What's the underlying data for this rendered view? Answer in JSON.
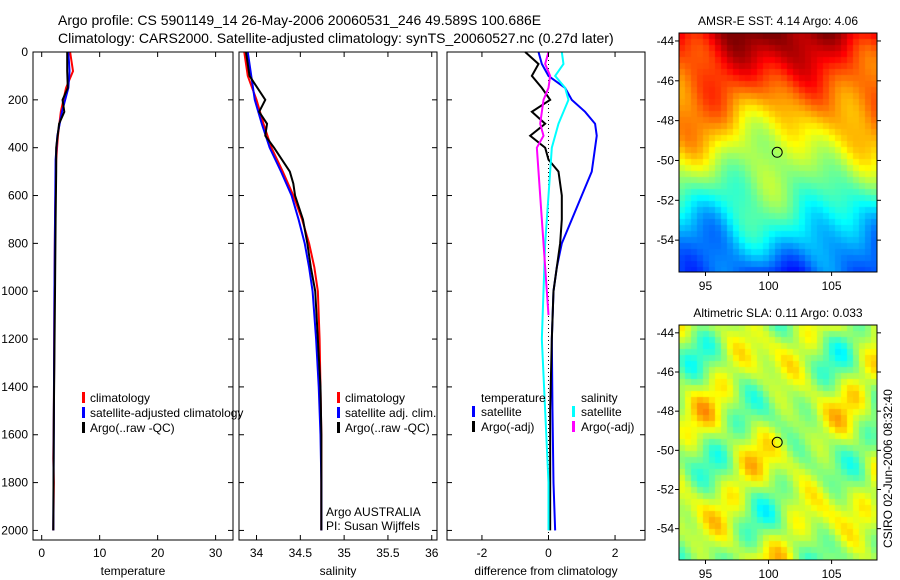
{
  "header": {
    "line1": "Argo profile: CS 5901149_14 26-May-2006 20060531_246 49.589S 100.686E",
    "line2": "Climatology: CARS2000. Satellite-adjusted climatology: synTS_20060527.nc (0.27d later)"
  },
  "chart_data": [
    {
      "type": "line",
      "id": "temperature",
      "xlabel": "temperature",
      "xlim": [
        -1.5,
        33
      ],
      "ylim": [
        2040,
        0
      ],
      "xticks": [
        0,
        10,
        20,
        30
      ],
      "yticks": [
        0,
        200,
        400,
        600,
        800,
        1000,
        1200,
        1400,
        1600,
        1800,
        2000
      ],
      "legend": [
        "climatology",
        "satellite-adjusted climatology",
        "Argo(..raw -QC)"
      ],
      "series": [
        {
          "name": "climatology",
          "color": "#ff0000",
          "depth": [
            0,
            80,
            150,
            250,
            350,
            450,
            700,
            1000,
            1500,
            1700,
            1800,
            2000
          ],
          "values": [
            4.9,
            5.4,
            4.2,
            3.3,
            2.8,
            2.5,
            2.3,
            2.2,
            2.1,
            2.0,
            2.1,
            2.0
          ]
        },
        {
          "name": "satellite-adjusted climatology",
          "color": "#0000ff",
          "depth": [
            0,
            80,
            150,
            250,
            350,
            450,
            700,
            1000,
            1500,
            2000
          ],
          "values": [
            4.6,
            4.8,
            4.6,
            3.5,
            2.7,
            2.4,
            2.3,
            2.2,
            2.1,
            2.0
          ]
        },
        {
          "name": "Argo(..raw -QC)",
          "color": "#000000",
          "depth": [
            0,
            80,
            150,
            200,
            250,
            300,
            400,
            500,
            700,
            1000,
            1500,
            2000
          ],
          "values": [
            4.4,
            4.4,
            4.5,
            3.6,
            3.9,
            3.0,
            2.5,
            2.5,
            2.4,
            2.3,
            2.1,
            2.0
          ]
        }
      ]
    },
    {
      "type": "line",
      "id": "salinity",
      "xlabel": "salinity",
      "xlim": [
        33.8,
        36.06
      ],
      "ylim": [
        2040,
        0
      ],
      "xticks": [
        34,
        34.5,
        35,
        35.5,
        36
      ],
      "legend": [
        "climatology",
        "satellite adj. clim.",
        "Argo(..raw -QC)"
      ],
      "annotation": [
        "Argo AUSTRALIA",
        "PI: Susan Wijffels"
      ],
      "series": [
        {
          "name": "climatology",
          "color": "#ff0000",
          "depth": [
            0,
            100,
            200,
            300,
            400,
            500,
            600,
            700,
            800,
            900,
            1000,
            1200,
            1400,
            1600,
            1800,
            2000
          ],
          "values": [
            33.86,
            33.9,
            34.0,
            34.08,
            34.17,
            34.3,
            34.42,
            34.52,
            34.6,
            34.66,
            34.7,
            34.72,
            34.73,
            34.74,
            34.74,
            34.74
          ]
        },
        {
          "name": "satellite adj. clim.",
          "color": "#0000ff",
          "depth": [
            0,
            100,
            200,
            300,
            400,
            500,
            600,
            700,
            800,
            900,
            1000,
            1200,
            1400,
            1600,
            1800,
            2000
          ],
          "values": [
            33.9,
            33.94,
            33.98,
            34.06,
            34.15,
            34.28,
            34.4,
            34.48,
            34.55,
            34.6,
            34.64,
            34.68,
            34.71,
            34.73,
            34.74,
            34.74
          ]
        },
        {
          "name": "Argo(..raw -QC)",
          "color": "#000000",
          "depth": [
            0,
            100,
            200,
            250,
            300,
            350,
            400,
            500,
            550,
            600,
            700,
            800,
            900,
            1000,
            1200,
            1400,
            1600,
            1800,
            2000
          ],
          "values": [
            33.88,
            33.92,
            34.1,
            34.03,
            34.12,
            34.1,
            34.2,
            34.38,
            34.42,
            34.44,
            34.53,
            34.58,
            34.62,
            34.67,
            34.7,
            34.73,
            34.74,
            34.74,
            34.74
          ]
        }
      ]
    },
    {
      "type": "line",
      "id": "difference",
      "xlabel": "difference from climatology",
      "xlim": [
        -3.05,
        2.9
      ],
      "ylim": [
        2040,
        0
      ],
      "xticks": [
        -2,
        0,
        2
      ],
      "legend": {
        "temperature_title": "temperature",
        "salinity_title": "salinity",
        "temp_items": [
          "satellite",
          "Argo(-adj)"
        ],
        "sal_items": [
          "satellite",
          "Argo(-adj)"
        ]
      },
      "series": [
        {
          "name": "temperature satellite",
          "color": "#0000ff",
          "depth": [
            0,
            50,
            100,
            150,
            200,
            250,
            300,
            350,
            400,
            500,
            600,
            700,
            800,
            900,
            1000,
            1200,
            1500,
            1800,
            2000
          ],
          "values": [
            -0.3,
            -0.2,
            0.0,
            0.5,
            0.7,
            1.1,
            1.4,
            1.45,
            1.4,
            1.3,
            1.0,
            0.7,
            0.4,
            0.25,
            0.15,
            0.1,
            0.12,
            0.15,
            0.2
          ]
        },
        {
          "name": "temperature Argo(-adj)",
          "color": "#000000",
          "depth": [
            0,
            50,
            100,
            150,
            200,
            250,
            300,
            350,
            400,
            450,
            500,
            600,
            700,
            800,
            1000,
            1200,
            1500,
            1800,
            2000
          ],
          "values": [
            -0.7,
            -0.3,
            -0.5,
            -0.2,
            0.05,
            -0.5,
            -0.1,
            -0.55,
            -0.1,
            0.0,
            0.3,
            0.4,
            0.4,
            0.35,
            0.15,
            0.1,
            0.05,
            0.05,
            0.05
          ]
        },
        {
          "name": "salinity satellite",
          "color": "#00ffff",
          "depth": [
            0,
            50,
            100,
            150,
            200,
            300,
            400,
            600,
            800,
            1000,
            1200,
            1500,
            1800,
            2000
          ],
          "values": [
            0.4,
            0.45,
            0.2,
            0.5,
            0.6,
            0.3,
            0.1,
            0.0,
            -0.1,
            -0.15,
            -0.2,
            -0.1,
            0.0,
            0.0
          ]
        },
        {
          "name": "salinity Argo(-adj)",
          "color": "#ff00ff",
          "depth": [
            0,
            50,
            100,
            150,
            200,
            300,
            350,
            400,
            500,
            600,
            800,
            1000,
            1100
          ],
          "values": [
            0.0,
            -0.1,
            0.05,
            0.0,
            -0.15,
            -0.25,
            -0.15,
            -0.35,
            -0.3,
            -0.25,
            -0.15,
            -0.05,
            0.0
          ]
        }
      ]
    }
  ],
  "maps": [
    {
      "id": "sst",
      "title": "AMSR-E SST: 4.14 Argo: 4.06",
      "lon_ticks": [
        95,
        100,
        105
      ],
      "lat_ticks": [
        -44,
        -46,
        -48,
        -50,
        -52,
        -54
      ],
      "argo_lon": 100.686,
      "argo_lat": -49.589
    },
    {
      "id": "sla",
      "title": "Altimetric SLA: 0.11 Argo: 0.033",
      "lon_ticks": [
        95,
        100,
        105
      ],
      "lat_ticks": [
        -44,
        -46,
        -48,
        -50,
        -52,
        -54
      ],
      "argo_lon": 100.686,
      "argo_lat": -49.589
    }
  ],
  "footer_stamp": "CSIRO 02-Jun-2006 08:32:40"
}
